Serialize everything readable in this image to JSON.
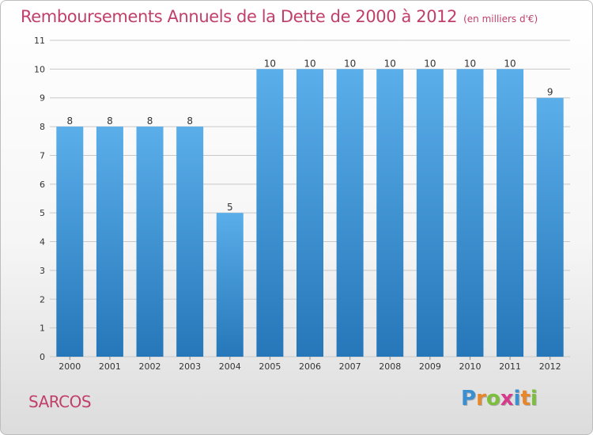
{
  "title": "Remboursements Annuels de la Dette de 2000 à 2012",
  "subtitle": "(en milliers d'€)",
  "location": "SARCOS",
  "brand": {
    "letters": [
      "P",
      "r",
      "o",
      "x",
      "i",
      "t",
      "i"
    ],
    "colors": [
      "#3a8fd1",
      "#e8862a",
      "#7bbf3a",
      "#d63a8a",
      "#3a8fd1",
      "#e8862a",
      "#7bbf3a"
    ]
  },
  "colors": {
    "title": "#c0406a",
    "bar_top": "#5aaee9",
    "bar_bottom": "#2677b9",
    "grid": "#c8c8c8",
    "axis_text": "#333333"
  },
  "chart_data": {
    "type": "bar",
    "categories": [
      "2000",
      "2001",
      "2002",
      "2003",
      "2004",
      "2005",
      "2006",
      "2007",
      "2008",
      "2009",
      "2010",
      "2011",
      "2012"
    ],
    "values": [
      8,
      8,
      8,
      8,
      5,
      10,
      10,
      10,
      10,
      10,
      10,
      10,
      9
    ],
    "yticks": [
      0,
      1,
      2,
      3,
      4,
      5,
      6,
      7,
      8,
      9,
      10,
      11
    ],
    "ylim": [
      0,
      11
    ],
    "grid": true,
    "data_labels": true
  }
}
